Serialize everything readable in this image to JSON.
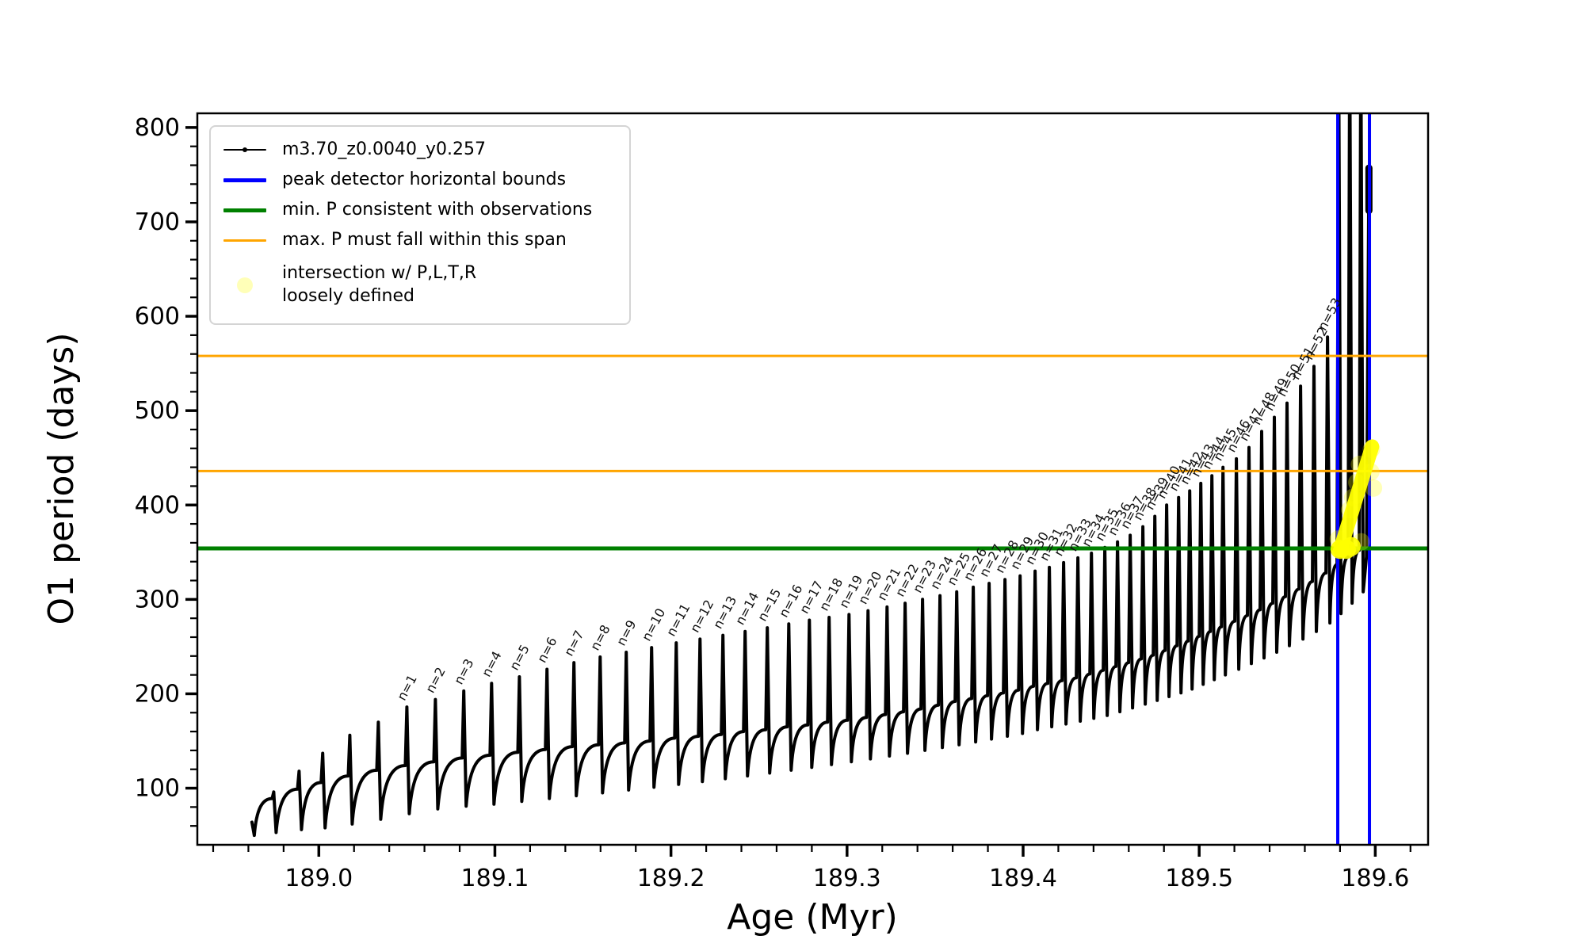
{
  "axes": {
    "xlabel": "Age (Myr)",
    "ylabel": "O1 period (days)",
    "xlim": [
      188.931,
      189.63
    ],
    "ylim": [
      40,
      815
    ],
    "xticks": [
      189.0,
      189.1,
      189.2,
      189.3,
      189.4,
      189.5,
      189.6
    ],
    "xtick_labels": [
      "189.0",
      "189.1",
      "189.2",
      "189.3",
      "189.4",
      "189.5",
      "189.6"
    ],
    "x_minor_step": 0.02,
    "yticks": [
      100,
      200,
      300,
      400,
      500,
      600,
      700,
      800
    ],
    "y_minor_step": 20,
    "grid": false
  },
  "legend": {
    "entries": [
      {
        "label": "m3.70_z0.0040_y0.257",
        "type": "track-line",
        "color": "#000000"
      },
      {
        "label": "peak detector horizontal bounds",
        "type": "line",
        "color": "#0000ff"
      },
      {
        "label": "min. P consistent with observations",
        "type": "line",
        "color": "#008000"
      },
      {
        "label": "max. P must fall within this span",
        "type": "line",
        "color": "#ffa500"
      },
      {
        "label_line1": "intersection w/ P,L,T,R",
        "label_line2": "loosely defined",
        "type": "marker",
        "color": "#ffff00"
      }
    ],
    "position": "upper left"
  },
  "colors": {
    "track": "#000000",
    "peak_bounds": "#0000ff",
    "min_P": "#008000",
    "max_P": "#ffa500",
    "intersection": "#ffff00"
  },
  "chart_data": {
    "type": "line",
    "series_name": "m3.70_z0.0040_y0.257",
    "min_P_line": 354,
    "max_P_span_lines": [
      436,
      558
    ],
    "peak_detector_bounds_age": [
      189.5787,
      189.5967
    ],
    "track_start": {
      "age": 188.962,
      "value": 64,
      "first_dip": 50
    },
    "cycles": [
      {
        "n": 0,
        "age": 188.9744,
        "peak": 96,
        "base": 89,
        "dip": 53
      },
      {
        "n": 0,
        "age": 188.9888,
        "peak": 118,
        "base": 99,
        "dip": 56
      },
      {
        "n": 0,
        "age": 189.0022,
        "peak": 137,
        "base": 106,
        "dip": 58
      },
      {
        "n": 0,
        "age": 189.0176,
        "peak": 156,
        "base": 113,
        "dip": 62
      },
      {
        "n": 0,
        "age": 189.0338,
        "peak": 170,
        "base": 119,
        "dip": 67
      },
      {
        "n": 1,
        "age": 189.05,
        "peak": 186,
        "base": 124,
        "dip": 73
      },
      {
        "n": 2,
        "age": 189.0662,
        "peak": 194,
        "base": 128,
        "dip": 78
      },
      {
        "n": 3,
        "age": 189.0823,
        "peak": 203,
        "base": 132,
        "dip": 81
      },
      {
        "n": 4,
        "age": 189.0981,
        "peak": 211,
        "base": 135,
        "dip": 83
      },
      {
        "n": 5,
        "age": 189.1139,
        "peak": 218,
        "base": 138,
        "dip": 86
      },
      {
        "n": 6,
        "age": 189.1296,
        "peak": 226,
        "base": 141,
        "dip": 89
      },
      {
        "n": 7,
        "age": 189.1449,
        "peak": 233,
        "base": 144,
        "dip": 92
      },
      {
        "n": 8,
        "age": 189.1598,
        "peak": 239,
        "base": 146,
        "dip": 95
      },
      {
        "n": 9,
        "age": 189.1746,
        "peak": 244,
        "base": 148,
        "dip": 98
      },
      {
        "n": 10,
        "age": 189.189,
        "peak": 249,
        "base": 150,
        "dip": 101
      },
      {
        "n": 11,
        "age": 189.203,
        "peak": 254,
        "base": 153,
        "dip": 104
      },
      {
        "n": 12,
        "age": 189.2165,
        "peak": 258,
        "base": 155,
        "dip": 107
      },
      {
        "n": 13,
        "age": 189.2295,
        "peak": 262,
        "base": 157,
        "dip": 110
      },
      {
        "n": 14,
        "age": 189.2421,
        "peak": 266,
        "base": 160,
        "dip": 113
      },
      {
        "n": 15,
        "age": 189.2547,
        "peak": 270,
        "base": 162,
        "dip": 116
      },
      {
        "n": 16,
        "age": 189.2669,
        "peak": 274,
        "base": 165,
        "dip": 119
      },
      {
        "n": 17,
        "age": 189.2786,
        "peak": 278,
        "base": 167,
        "dip": 122
      },
      {
        "n": 18,
        "age": 189.2898,
        "peak": 281,
        "base": 170,
        "dip": 125
      },
      {
        "n": 19,
        "age": 189.3011,
        "peak": 284,
        "base": 172,
        "dip": 128
      },
      {
        "n": 20,
        "age": 189.3119,
        "peak": 288,
        "base": 175,
        "dip": 131
      },
      {
        "n": 21,
        "age": 189.3227,
        "peak": 292,
        "base": 178,
        "dip": 134
      },
      {
        "n": 22,
        "age": 189.333,
        "peak": 296,
        "base": 181,
        "dip": 137
      },
      {
        "n": 23,
        "age": 189.3429,
        "peak": 300,
        "base": 184,
        "dip": 140
      },
      {
        "n": 24,
        "age": 189.3528,
        "peak": 304,
        "base": 188,
        "dip": 143
      },
      {
        "n": 25,
        "age": 189.3623,
        "peak": 308,
        "base": 192,
        "dip": 146
      },
      {
        "n": 26,
        "age": 189.3717,
        "peak": 313,
        "base": 195,
        "dip": 149
      },
      {
        "n": 27,
        "age": 189.3807,
        "peak": 317,
        "base": 198,
        "dip": 152
      },
      {
        "n": 28,
        "age": 189.3897,
        "peak": 321,
        "base": 201,
        "dip": 155
      },
      {
        "n": 29,
        "age": 189.3983,
        "peak": 325,
        "base": 204,
        "dip": 158
      },
      {
        "n": 30,
        "age": 189.4068,
        "peak": 330,
        "base": 208,
        "dip": 162
      },
      {
        "n": 31,
        "age": 189.4149,
        "peak": 334,
        "base": 211,
        "dip": 165
      },
      {
        "n": 32,
        "age": 189.423,
        "peak": 339,
        "base": 214,
        "dip": 168
      },
      {
        "n": 33,
        "age": 189.4311,
        "peak": 344,
        "base": 217,
        "dip": 171
      },
      {
        "n": 34,
        "age": 189.4388,
        "peak": 349,
        "base": 221,
        "dip": 174
      },
      {
        "n": 35,
        "age": 189.4464,
        "peak": 355,
        "base": 225,
        "dip": 177
      },
      {
        "n": 36,
        "age": 189.4536,
        "peak": 361,
        "base": 229,
        "dip": 181
      },
      {
        "n": 37,
        "age": 189.4608,
        "peak": 368,
        "base": 233,
        "dip": 185
      },
      {
        "n": 38,
        "age": 189.468,
        "peak": 377,
        "base": 237,
        "dip": 189
      },
      {
        "n": 39,
        "age": 189.4748,
        "peak": 388,
        "base": 241,
        "dip": 193
      },
      {
        "n": 40,
        "age": 189.4815,
        "peak": 400,
        "base": 246,
        "dip": 197
      },
      {
        "n": 41,
        "age": 189.4883,
        "peak": 408,
        "base": 251,
        "dip": 201
      },
      {
        "n": 42,
        "age": 189.4946,
        "peak": 415,
        "base": 256,
        "dip": 205
      },
      {
        "n": 43,
        "age": 189.5009,
        "peak": 423,
        "base": 261,
        "dip": 210
      },
      {
        "n": 44,
        "age": 189.5072,
        "peak": 431,
        "base": 266,
        "dip": 215
      },
      {
        "n": 45,
        "age": 189.5135,
        "peak": 440,
        "base": 271,
        "dip": 220
      },
      {
        "n": 46,
        "age": 189.5211,
        "peak": 449,
        "base": 277,
        "dip": 226
      },
      {
        "n": 47,
        "age": 189.5283,
        "peak": 461,
        "base": 283,
        "dip": 232
      },
      {
        "n": 48,
        "age": 189.5355,
        "peak": 478,
        "base": 289,
        "dip": 238
      },
      {
        "n": 49,
        "age": 189.5427,
        "peak": 493,
        "base": 296,
        "dip": 244
      },
      {
        "n": 50,
        "age": 189.5499,
        "peak": 508,
        "base": 303,
        "dip": 251
      },
      {
        "n": 51,
        "age": 189.5576,
        "peak": 526,
        "base": 311,
        "dip": 258
      },
      {
        "n": 52,
        "age": 189.5652,
        "peak": 547,
        "base": 319,
        "dip": 266
      },
      {
        "n": 53,
        "age": 189.5729,
        "peak": 578,
        "base": 328,
        "dip": 275
      },
      {
        "n": 0,
        "age": 189.5792,
        "peak": 900,
        "base": 337,
        "dip": 285
      },
      {
        "n": 0,
        "age": 189.5855,
        "peak": 900,
        "base": 345,
        "dip": 296
      },
      {
        "n": 0,
        "age": 189.5918,
        "peak": 900,
        "base": 352,
        "dip": 308
      }
    ],
    "track_end": {
      "shoulder_age": 189.595,
      "shoulder_value": 345,
      "end_age": 189.5964,
      "end_value": 757,
      "blob_span": [
        712,
        757
      ]
    },
    "intersection": {
      "streak": {
        "age": [
          189.58,
          189.5982
        ],
        "value": [
          352,
          462
        ]
      },
      "foot_points": [
        {
          "age": 189.58,
          "value": 353
        },
        {
          "age": 189.5836,
          "value": 353
        },
        {
          "age": 189.5863,
          "value": 356
        }
      ],
      "faint_points": [
        {
          "age": 189.5855,
          "value": 395
        },
        {
          "age": 189.5895,
          "value": 424
        },
        {
          "age": 189.591,
          "value": 443
        },
        {
          "age": 189.599,
          "value": 418
        },
        {
          "age": 189.5975,
          "value": 435
        },
        {
          "age": 189.5978,
          "value": 459
        },
        {
          "age": 189.592,
          "value": 361
        },
        {
          "age": 189.579,
          "value": 364
        },
        {
          "age": 189.5872,
          "value": 408
        }
      ]
    },
    "n_label_prefix": "n="
  }
}
